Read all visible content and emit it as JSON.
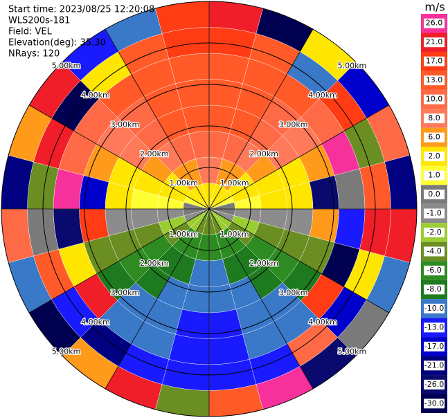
{
  "chart_data": {
    "type": "ppi",
    "header": [
      "Start time: 2023/08/25 12:20:08",
      "WLS200s-181",
      "Field: VEL",
      "Elevation(deg): 35.30",
      "NRays: 120"
    ],
    "unit": "m/s",
    "rlim": [
      0,
      5
    ],
    "rings": [
      {
        "value": 1,
        "label": "1.00km"
      },
      {
        "value": 2,
        "label": "2.00km"
      },
      {
        "value": 3,
        "label": "3.00km"
      },
      {
        "value": 4,
        "label": "4.00km"
      },
      {
        "value": 5,
        "label": "5.00km"
      }
    ],
    "colorbar": [
      {
        "value": 26,
        "label": "26.0",
        "color": "#f7319c"
      },
      {
        "value": 21,
        "label": "21.0",
        "color": "#f01e28"
      },
      {
        "value": 17,
        "label": "17.0",
        "color": "#ff3c14"
      },
      {
        "value": 13,
        "label": "13.0",
        "color": "#ff5a28"
      },
      {
        "value": 10,
        "label": "10.0",
        "color": "#ff6a46"
      },
      {
        "value": 8,
        "label": "8.0",
        "color": "#ff7a5a"
      },
      {
        "value": 6,
        "label": "6.0",
        "color": "#ff9a1a"
      },
      {
        "value": 2,
        "label": "2.0",
        "color": "#ffe600"
      },
      {
        "value": 1,
        "label": "1.0",
        "color": "#ffff33"
      },
      {
        "value": 0,
        "label": "0.0",
        "color": "#7a7a7a"
      },
      {
        "value": -1,
        "label": "-1.0",
        "color": "#8c8c8c"
      },
      {
        "value": -2,
        "label": "-2.0",
        "color": "#9acd32"
      },
      {
        "value": -4,
        "label": "-4.0",
        "color": "#6b8e23"
      },
      {
        "value": -6,
        "label": "-6.0",
        "color": "#2e8b22"
      },
      {
        "value": -8,
        "label": "-8.0",
        "color": "#1e7a1e"
      },
      {
        "value": -10,
        "label": "-10.0",
        "color": "#3a78c8"
      },
      {
        "value": -13,
        "label": "-13.0",
        "color": "#1a1aff"
      },
      {
        "value": -17,
        "label": "-17.0",
        "color": "#0000cd"
      },
      {
        "value": -21,
        "label": "-21.0",
        "color": "#000080"
      },
      {
        "value": -26,
        "label": "-26.0",
        "color": "#0a0a6e"
      },
      {
        "value": -30,
        "label": "-30.0",
        "color": "#000050"
      }
    ],
    "velocity": [
      [
        3,
        8,
        12,
        14,
        15,
        16,
        17,
        24
      ],
      [
        3,
        7,
        11,
        13,
        14,
        15,
        16,
        -28
      ],
      [
        2,
        6,
        9,
        11,
        12,
        13,
        -9,
        5
      ],
      [
        2,
        5,
        7,
        9,
        9,
        10,
        19,
        -15
      ],
      [
        1,
        3,
        5,
        5,
        6,
        27,
        -3,
        11
      ],
      [
        0,
        1,
        2,
        2,
        -22,
        0,
        15,
        -19
      ],
      [
        0,
        -1,
        -1,
        -1,
        7,
        -12,
        21,
        24
      ],
      [
        -1,
        -2,
        -3,
        -4,
        -4,
        -28,
        5,
        -9
      ],
      [
        -2,
        -4,
        -5,
        -6,
        -7,
        19,
        -15,
        0
      ],
      [
        -2,
        -5,
        -7,
        -8,
        -9,
        -9,
        11,
        -22
      ],
      [
        -3,
        -6,
        -8,
        -9,
        -10,
        -10,
        -11,
        27
      ],
      [
        -3,
        -6,
        -9,
        -10,
        -11,
        -11,
        -12,
        15
      ],
      [
        -3,
        -6,
        -9,
        -10,
        -11,
        -11,
        -12,
        -3
      ],
      [
        -3,
        -6,
        -8,
        -9,
        -10,
        -10,
        -11,
        21
      ],
      [
        -2,
        -5,
        -7,
        -8,
        -9,
        -9,
        -19,
        7
      ],
      [
        -2,
        -4,
        -5,
        -6,
        -7,
        24,
        -12,
        -28
      ],
      [
        -1,
        -2,
        -3,
        -4,
        -4,
        5,
        15,
        -9
      ],
      [
        0,
        -1,
        -1,
        -1,
        19,
        -22,
        0,
        11
      ],
      [
        0,
        1,
        1,
        2,
        -15,
        27,
        -3,
        -19
      ],
      [
        1,
        3,
        5,
        5,
        6,
        11,
        24,
        7
      ],
      [
        2,
        5,
        7,
        9,
        9,
        10,
        -28,
        21
      ],
      [
        2,
        6,
        9,
        11,
        12,
        13,
        5,
        -12
      ],
      [
        3,
        7,
        11,
        13,
        14,
        15,
        16,
        -9
      ],
      [
        3,
        8,
        12,
        14,
        15,
        16,
        17,
        19
      ]
    ]
  }
}
